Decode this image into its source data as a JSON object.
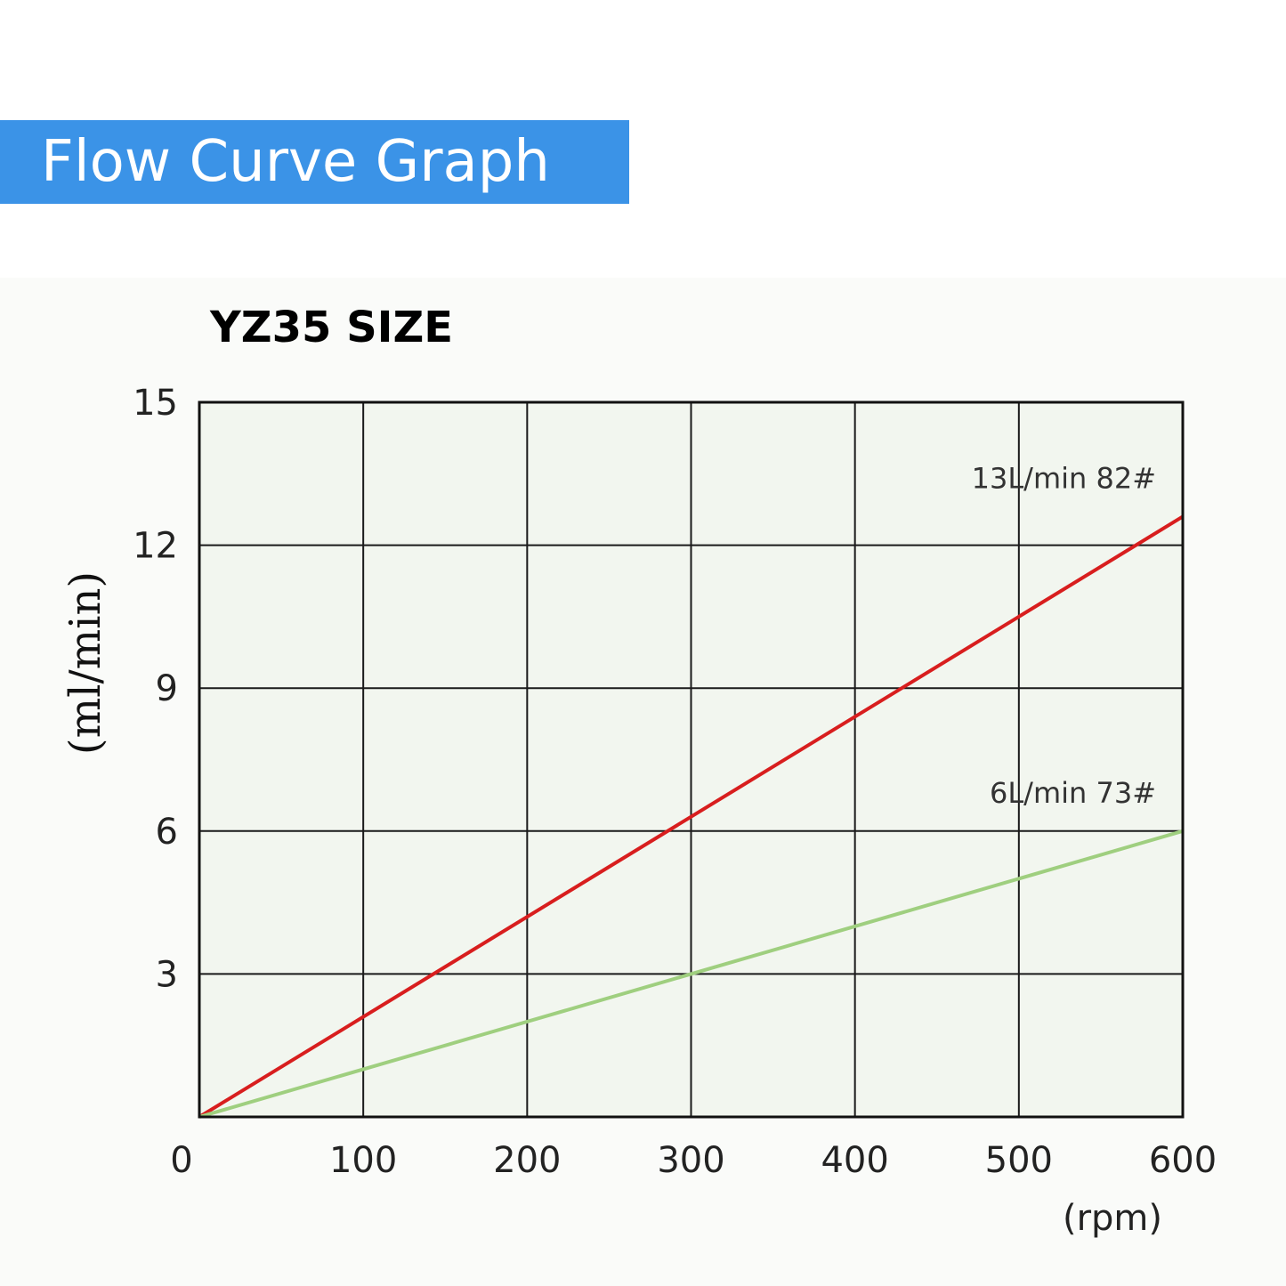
{
  "banner": {
    "title": "Flow Curve Graph",
    "color": "#3b93e7"
  },
  "chart_data": {
    "type": "line",
    "title": "YZ35 SIZE",
    "ylabel": "(ml/min)",
    "xunit": "(rpm)",
    "xlim": [
      0,
      600
    ],
    "ylim": [
      0,
      15
    ],
    "x_ticks": [
      "0",
      "100",
      "200",
      "300",
      "400",
      "500",
      "600"
    ],
    "y_ticks": [
      "3",
      "6",
      "9",
      "12",
      "15"
    ],
    "grid": true,
    "plot_background": "#f2f6ef",
    "series": [
      {
        "name": "13L/min 82#",
        "color": "#d81e1e",
        "points": [
          [
            0,
            0
          ],
          [
            600,
            12.6
          ]
        ]
      },
      {
        "name": "6L/min 73#",
        "color": "#9fcf7f",
        "points": [
          [
            0,
            0
          ],
          [
            600,
            6
          ]
        ]
      }
    ]
  }
}
